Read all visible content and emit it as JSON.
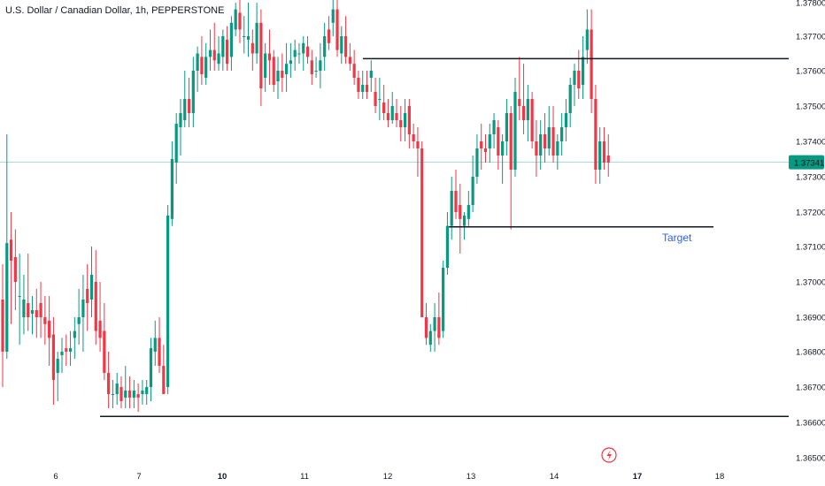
{
  "header": {
    "title": "U.S. Dollar / Canadian Dollar, 1h, PEPPERSTONE"
  },
  "colors": {
    "up": "#089981",
    "down": "#f23645",
    "price_tag": "#089981",
    "level_line": "#131722",
    "annotation": "#2962ff"
  },
  "chart_data": {
    "type": "candlestick",
    "title": "U.S. Dollar / Canadian Dollar, 1h, PEPPERSTONE",
    "y_axis": {
      "position": "right",
      "range": [
        1.3645,
        1.3782
      ],
      "ticks": [
        "1.37800",
        "1.37700",
        "1.37600",
        "1.37500",
        "1.37400",
        "1.37300",
        "1.37200",
        "1.37100",
        "1.37000",
        "1.36900",
        "1.36800",
        "1.36700",
        "1.36600",
        "1.36500"
      ]
    },
    "x_axis": {
      "ticks": [
        {
          "label": "6",
          "bold": false
        },
        {
          "label": "7",
          "bold": false
        },
        {
          "label": "10",
          "bold": true
        },
        {
          "label": "11",
          "bold": false
        },
        {
          "label": "12",
          "bold": false
        },
        {
          "label": "13",
          "bold": false
        },
        {
          "label": "14",
          "bold": false
        },
        {
          "label": "17",
          "bold": true
        },
        {
          "label": "18",
          "bold": false
        }
      ]
    },
    "current_price": {
      "value": 1.37341,
      "label": "1.37341"
    },
    "horizontal_levels": [
      {
        "price": 1.37635,
        "from_session": 11.7
      },
      {
        "price": 1.37157,
        "from_session": 12.75,
        "to_session": 17.95
      },
      {
        "price": 1.36617,
        "from_session": 6.55
      }
    ],
    "annotations": [
      {
        "text": "Target"
      }
    ],
    "candles_ohlc": [
      [
        1.3695,
        1.3705,
        1.367,
        1.368
      ],
      [
        1.368,
        1.3742,
        1.3678,
        1.3711
      ],
      [
        1.3712,
        1.372,
        1.3688,
        1.3706
      ],
      [
        1.3707,
        1.3715,
        1.3692,
        1.37
      ],
      [
        1.3696,
        1.3708,
        1.3682,
        1.3696
      ],
      [
        1.369,
        1.3702,
        1.3685,
        1.3695
      ],
      [
        1.3694,
        1.3708,
        1.3686,
        1.369
      ],
      [
        1.3691,
        1.3696,
        1.3685,
        1.3692
      ],
      [
        1.3692,
        1.3698,
        1.3684,
        1.369
      ],
      [
        1.3694,
        1.37,
        1.3684,
        1.369
      ],
      [
        1.369,
        1.3696,
        1.3682,
        1.3688
      ],
      [
        1.3689,
        1.3696,
        1.3676,
        1.3684
      ],
      [
        1.3685,
        1.369,
        1.3665,
        1.3672
      ],
      [
        1.3674,
        1.368,
        1.3666,
        1.3678
      ],
      [
        1.3679,
        1.3684,
        1.3674,
        1.368
      ],
      [
        1.3681,
        1.3685,
        1.3676,
        1.368
      ],
      [
        1.368,
        1.3686,
        1.3676,
        1.3681
      ],
      [
        1.3684,
        1.369,
        1.3678,
        1.3686
      ],
      [
        1.3688,
        1.3698,
        1.3682,
        1.369
      ],
      [
        1.369,
        1.3702,
        1.368,
        1.3695
      ],
      [
        1.3698,
        1.3705,
        1.3686,
        1.3694
      ],
      [
        1.3695,
        1.371,
        1.369,
        1.3702
      ],
      [
        1.37,
        1.3709,
        1.3682,
        1.3686
      ],
      [
        1.3689,
        1.37,
        1.368,
        1.3684
      ],
      [
        1.3686,
        1.3694,
        1.3672,
        1.3674
      ],
      [
        1.3674,
        1.368,
        1.3664,
        1.3668
      ],
      [
        1.3668,
        1.3672,
        1.3664,
        1.3668
      ],
      [
        1.3668,
        1.3674,
        1.3665,
        1.3671
      ],
      [
        1.367,
        1.3673,
        1.3664,
        1.3666
      ],
      [
        1.3667,
        1.3676,
        1.3664,
        1.3669
      ],
      [
        1.3669,
        1.3673,
        1.3664,
        1.3667
      ],
      [
        1.3667,
        1.3672,
        1.3664,
        1.3669
      ],
      [
        1.3668,
        1.3671,
        1.3663,
        1.3667
      ],
      [
        1.3668,
        1.3672,
        1.3665,
        1.3669
      ],
      [
        1.3668,
        1.3672,
        1.3665,
        1.367
      ],
      [
        1.367,
        1.3684,
        1.3666,
        1.3681
      ],
      [
        1.368,
        1.3689,
        1.3676,
        1.3684
      ],
      [
        1.3684,
        1.369,
        1.3674,
        1.3676
      ],
      [
        1.3676,
        1.3682,
        1.3668,
        1.3668
      ],
      [
        1.367,
        1.3722,
        1.3668,
        1.3719
      ],
      [
        1.3718,
        1.374,
        1.3716,
        1.3735
      ],
      [
        1.3734,
        1.3748,
        1.3728,
        1.3745
      ],
      [
        1.3744,
        1.3752,
        1.3736,
        1.3748
      ],
      [
        1.3746,
        1.376,
        1.3744,
        1.3752
      ],
      [
        1.3752,
        1.3758,
        1.3744,
        1.3748
      ],
      [
        1.3748,
        1.3764,
        1.3744,
        1.376
      ],
      [
        1.376,
        1.3767,
        1.3754,
        1.3765
      ],
      [
        1.3764,
        1.377,
        1.3756,
        1.3759
      ],
      [
        1.3758,
        1.3768,
        1.3756,
        1.3764
      ],
      [
        1.3764,
        1.3772,
        1.376,
        1.3766
      ],
      [
        1.3766,
        1.3774,
        1.376,
        1.3763
      ],
      [
        1.3762,
        1.377,
        1.376,
        1.3765
      ],
      [
        1.3764,
        1.3772,
        1.376,
        1.377
      ],
      [
        1.3769,
        1.3773,
        1.376,
        1.3762
      ],
      [
        1.3764,
        1.3776,
        1.376,
        1.3774
      ],
      [
        1.3772,
        1.378,
        1.377,
        1.3778
      ],
      [
        1.3777,
        1.3781,
        1.3768,
        1.3772
      ],
      [
        1.377,
        1.3776,
        1.3765,
        1.377
      ],
      [
        1.3769,
        1.378,
        1.3764,
        1.377
      ],
      [
        1.3768,
        1.3772,
        1.376,
        1.3765
      ],
      [
        1.3765,
        1.378,
        1.3762,
        1.3774
      ],
      [
        1.3774,
        1.3778,
        1.375,
        1.3755
      ],
      [
        1.3758,
        1.3768,
        1.3754,
        1.3765
      ],
      [
        1.3765,
        1.3772,
        1.3756,
        1.3763
      ],
      [
        1.3764,
        1.3766,
        1.3754,
        1.3756
      ],
      [
        1.3757,
        1.3764,
        1.3752,
        1.376
      ],
      [
        1.376,
        1.3765,
        1.3754,
        1.3758
      ],
      [
        1.3759,
        1.3768,
        1.3754,
        1.3762
      ],
      [
        1.3762,
        1.3768,
        1.3758,
        1.3763
      ],
      [
        1.3764,
        1.3769,
        1.376,
        1.3766
      ],
      [
        1.3765,
        1.3768,
        1.3762,
        1.3765
      ],
      [
        1.3765,
        1.377,
        1.376,
        1.3768
      ],
      [
        1.3767,
        1.377,
        1.3762,
        1.3764
      ],
      [
        1.3763,
        1.3766,
        1.3756,
        1.3759
      ],
      [
        1.376,
        1.3764,
        1.3758,
        1.376
      ],
      [
        1.376,
        1.3768,
        1.3755,
        1.3763
      ],
      [
        1.3764,
        1.3774,
        1.376,
        1.377
      ],
      [
        1.3772,
        1.3776,
        1.3766,
        1.3768
      ],
      [
        1.3774,
        1.3782,
        1.377,
        1.3778
      ],
      [
        1.3778,
        1.3782,
        1.3764,
        1.3766
      ],
      [
        1.3765,
        1.3773,
        1.3762,
        1.377
      ],
      [
        1.377,
        1.3776,
        1.3762,
        1.3764
      ],
      [
        1.3764,
        1.3768,
        1.376,
        1.3762
      ],
      [
        1.3762,
        1.3766,
        1.3756,
        1.3758
      ],
      [
        1.3758,
        1.376,
        1.3752,
        1.3754
      ],
      [
        1.3754,
        1.376,
        1.3752,
        1.3756
      ],
      [
        1.3756,
        1.376,
        1.3752,
        1.3754
      ],
      [
        1.3758,
        1.3763,
        1.3754,
        1.376
      ],
      [
        1.3754,
        1.3758,
        1.3748,
        1.375
      ],
      [
        1.3752,
        1.3758,
        1.3746,
        1.3752
      ],
      [
        1.3751,
        1.3756,
        1.3746,
        1.3748
      ],
      [
        1.3748,
        1.3752,
        1.3744,
        1.3746
      ],
      [
        1.3746,
        1.3754,
        1.3745,
        1.375
      ],
      [
        1.3748,
        1.3752,
        1.3744,
        1.3746
      ],
      [
        1.3746,
        1.375,
        1.374,
        1.3744
      ],
      [
        1.3744,
        1.3752,
        1.374,
        1.3748
      ],
      [
        1.375,
        1.3752,
        1.3738,
        1.3742
      ],
      [
        1.3742,
        1.3745,
        1.3738,
        1.374
      ],
      [
        1.374,
        1.3744,
        1.373,
        1.3738
      ],
      [
        1.3738,
        1.374,
        1.369,
        1.369
      ],
      [
        1.369,
        1.3694,
        1.3682,
        1.3684
      ],
      [
        1.3682,
        1.3688,
        1.368,
        1.3686
      ],
      [
        1.3686,
        1.3694,
        1.368,
        1.369
      ],
      [
        1.369,
        1.3697,
        1.3682,
        1.3684
      ],
      [
        1.3686,
        1.3706,
        1.3684,
        1.3704
      ],
      [
        1.3704,
        1.372,
        1.3702,
        1.3716
      ],
      [
        1.3716,
        1.373,
        1.3712,
        1.3726
      ],
      [
        1.3726,
        1.3732,
        1.3718,
        1.372
      ],
      [
        1.3722,
        1.3728,
        1.3708,
        1.3718
      ],
      [
        1.3716,
        1.372,
        1.3712,
        1.3719
      ],
      [
        1.3718,
        1.3726,
        1.3716,
        1.3722
      ],
      [
        1.3722,
        1.3736,
        1.372,
        1.373
      ],
      [
        1.373,
        1.3742,
        1.3728,
        1.3738
      ],
      [
        1.374,
        1.3745,
        1.3732,
        1.3738
      ],
      [
        1.3738,
        1.3742,
        1.3734,
        1.3737
      ],
      [
        1.3738,
        1.3745,
        1.3734,
        1.3742
      ],
      [
        1.3742,
        1.3748,
        1.3738,
        1.3746
      ],
      [
        1.3744,
        1.3746,
        1.3732,
        1.3736
      ],
      [
        1.3736,
        1.3742,
        1.3728,
        1.374
      ],
      [
        1.374,
        1.3752,
        1.3736,
        1.3748
      ],
      [
        1.3748,
        1.375,
        1.3715,
        1.3732
      ],
      [
        1.3732,
        1.3758,
        1.373,
        1.3754
      ],
      [
        1.3752,
        1.3764,
        1.3746,
        1.375
      ],
      [
        1.375,
        1.3762,
        1.3742,
        1.3746
      ],
      [
        1.3746,
        1.3756,
        1.374,
        1.3752
      ],
      [
        1.3752,
        1.3754,
        1.3738,
        1.374
      ],
      [
        1.374,
        1.3746,
        1.373,
        1.3736
      ],
      [
        1.3736,
        1.3746,
        1.3732,
        1.3742
      ],
      [
        1.3742,
        1.3748,
        1.3734,
        1.3738
      ],
      [
        1.3738,
        1.375,
        1.3736,
        1.3744
      ],
      [
        1.3744,
        1.375,
        1.3734,
        1.3736
      ],
      [
        1.3736,
        1.3742,
        1.3732,
        1.374
      ],
      [
        1.374,
        1.3748,
        1.3736,
        1.3744
      ],
      [
        1.3744,
        1.3752,
        1.374,
        1.3748
      ],
      [
        1.3748,
        1.3758,
        1.3744,
        1.3756
      ],
      [
        1.3756,
        1.3762,
        1.375,
        1.376
      ],
      [
        1.376,
        1.3766,
        1.3752,
        1.3755
      ],
      [
        1.3756,
        1.377,
        1.3752,
        1.3764
      ],
      [
        1.3766,
        1.3778,
        1.3762,
        1.3772
      ],
      [
        1.3772,
        1.3778,
        1.3748,
        1.3752
      ],
      [
        1.3752,
        1.3756,
        1.3728,
        1.3732
      ],
      [
        1.3732,
        1.3744,
        1.3728,
        1.374
      ],
      [
        1.374,
        1.3744,
        1.3732,
        1.3734
      ],
      [
        1.3736,
        1.3742,
        1.373,
        1.3734
      ]
    ]
  }
}
